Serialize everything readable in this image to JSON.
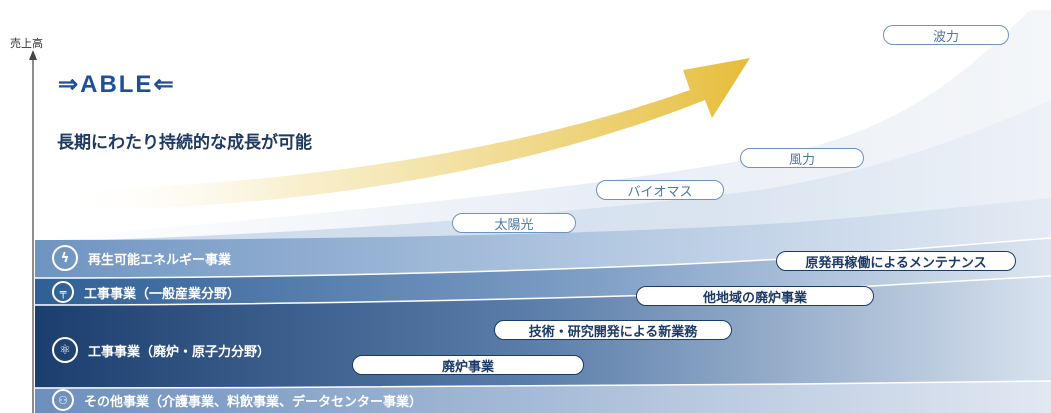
{
  "axis": {
    "y_label": "売上高"
  },
  "logo": {
    "text": "⇒ABLE⇐"
  },
  "tagline": "長期にわたり持続的な成長が可能",
  "bands": [
    {
      "label": "再生可能エネルギー事業",
      "icon": "renewable-energy-icon"
    },
    {
      "label": "工事事業（一般産業分野）",
      "icon": "construction-icon"
    },
    {
      "label": "工事事業（廃炉・原子力分野）",
      "icon": "atom-icon"
    },
    {
      "label": "その他事業（介護事業、料飲事業、データセンター事業）",
      "icon": "other-business-icon"
    }
  ],
  "renewables": [
    "太陽光",
    "バイオマス",
    "風力",
    "波力"
  ],
  "nuclear": [
    "原発再稼働によるメンテナンス",
    "他地域の廃炉事業",
    "技術・研究開発による新業務",
    "廃炉事業"
  ]
}
